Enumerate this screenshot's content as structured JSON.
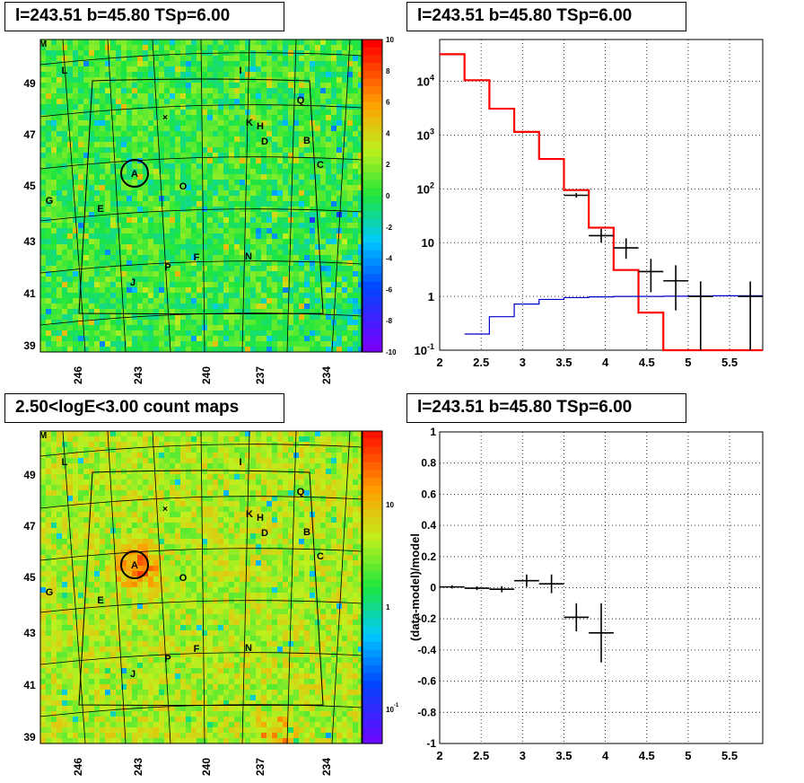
{
  "panels": {
    "top_left_title": "l=243.51 b=45.80 TSp=6.00",
    "top_right_title": "l=243.51 b=45.80 TSp=6.00",
    "bottom_left_title": "2.50<logE<3.00 count maps",
    "bottom_right_title": "l=243.51 b=45.80 TSp=6.00"
  },
  "maps": {
    "corner_label": "M",
    "lon_ticks": [
      "246",
      "243",
      "240",
      "237",
      "234"
    ],
    "lat_ticks": [
      "49",
      "47",
      "45",
      "43",
      "41",
      "39"
    ],
    "sources": [
      "L",
      "I",
      "Q",
      "K",
      "H",
      "D",
      "B",
      "C",
      "A",
      "O",
      "G",
      "E",
      "F",
      "N",
      "P",
      "J"
    ],
    "residual_colorbar_ticks": [
      "10",
      "8",
      "6",
      "4",
      "2",
      "0",
      "-2",
      "-4",
      "-6",
      "-8",
      "-10"
    ],
    "count_colorbar_ticks": [
      "10",
      "1",
      "10-1"
    ]
  },
  "chart_data": [
    {
      "type": "line",
      "panel": "spectrum",
      "title": "l=243.51 b=45.80 TSp=6.00",
      "xlabel": "",
      "ylabel": "",
      "xlim": [
        2,
        5.9
      ],
      "ylim": [
        0.1,
        60000
      ],
      "ylog": true,
      "grid": true,
      "x_ticks": [
        "2",
        "2.5",
        "3",
        "3.5",
        "4",
        "4.5",
        "5",
        "5.5"
      ],
      "y_ticks": [
        "10-1",
        "1",
        "10",
        "102",
        "103",
        "104"
      ],
      "series": [
        {
          "color": "#ff0000",
          "style": "step",
          "bins": [
            [
              2.0,
              2.3,
              32000
            ],
            [
              2.3,
              2.6,
              10500
            ],
            [
              2.6,
              2.9,
              3100
            ],
            [
              2.9,
              3.2,
              1150
            ],
            [
              3.2,
              3.5,
              360
            ],
            [
              3.5,
              3.8,
              95
            ],
            [
              3.8,
              4.1,
              19
            ],
            [
              4.1,
              4.4,
              3.1
            ],
            [
              4.4,
              4.7,
              0.5
            ],
            [
              4.7,
              5.9,
              0.1
            ]
          ]
        },
        {
          "color": "#0000cc",
          "style": "step",
          "bins": [
            [
              2.3,
              2.6,
              0.2
            ],
            [
              2.6,
              2.9,
              0.42
            ],
            [
              2.9,
              3.2,
              0.72
            ],
            [
              3.2,
              3.5,
              0.88
            ],
            [
              3.5,
              3.8,
              0.95
            ],
            [
              3.8,
              4.1,
              0.98
            ],
            [
              4.1,
              4.4,
              1.0
            ],
            [
              4.4,
              4.7,
              1.0
            ],
            [
              4.7,
              5.0,
              1.01
            ],
            [
              5.0,
              5.3,
              1.02
            ],
            [
              5.3,
              5.9,
              1.03
            ]
          ]
        },
        {
          "color": "#000000",
          "style": "errorbar",
          "points": [
            {
              "x": 3.65,
              "xerr": 0.15,
              "y": 76,
              "ylo": 69,
              "yhi": 84
            },
            {
              "x": 3.95,
              "xerr": 0.15,
              "y": 13.5,
              "ylo": 10,
              "yhi": 18
            },
            {
              "x": 4.25,
              "xerr": 0.15,
              "y": 8,
              "ylo": 5,
              "yhi": 12
            },
            {
              "x": 4.55,
              "xerr": 0.15,
              "y": 2.9,
              "ylo": 1.2,
              "yhi": 5
            },
            {
              "x": 4.85,
              "xerr": 0.15,
              "y": 1.95,
              "ylo": 0.55,
              "yhi": 3.8
            },
            {
              "x": 5.15,
              "xerr": 0.15,
              "y": 1.0,
              "ylo": 0.1,
              "yhi": 1.9
            },
            {
              "x": 5.75,
              "xerr": 0.15,
              "y": 1.0,
              "ylo": 0.1,
              "yhi": 1.9
            }
          ]
        }
      ]
    },
    {
      "type": "scatter",
      "panel": "residuals",
      "title": "l=243.51 b=45.80 TSp=6.00",
      "xlabel": "",
      "ylabel": "(data-model)/model",
      "xlim": [
        2,
        5.9
      ],
      "ylim": [
        -1,
        1
      ],
      "grid": true,
      "x_ticks": [
        "2",
        "2.5",
        "3",
        "3.5",
        "4",
        "4.5",
        "5",
        "5.5"
      ],
      "y_ticks": [
        "1",
        "0.8",
        "0.6",
        "0.4",
        "0.2",
        "0",
        "-0.2",
        "-0.4",
        "-0.6",
        "-0.8",
        "-1"
      ],
      "series": [
        {
          "color": "#000000",
          "style": "errorbar",
          "points": [
            {
              "x": 2.15,
              "xerr": 0.15,
              "y": 0.005,
              "yerr": 0.01
            },
            {
              "x": 2.45,
              "xerr": 0.15,
              "y": -0.003,
              "yerr": 0.012
            },
            {
              "x": 2.75,
              "xerr": 0.15,
              "y": -0.01,
              "yerr": 0.02
            },
            {
              "x": 3.05,
              "xerr": 0.15,
              "y": 0.045,
              "yerr": 0.04
            },
            {
              "x": 3.35,
              "xerr": 0.15,
              "y": 0.025,
              "yerr": 0.06
            },
            {
              "x": 3.65,
              "xerr": 0.15,
              "y": -0.19,
              "yerr": 0.09
            },
            {
              "x": 3.95,
              "xerr": 0.15,
              "y": -0.29,
              "yerr": 0.19
            }
          ]
        }
      ]
    }
  ]
}
